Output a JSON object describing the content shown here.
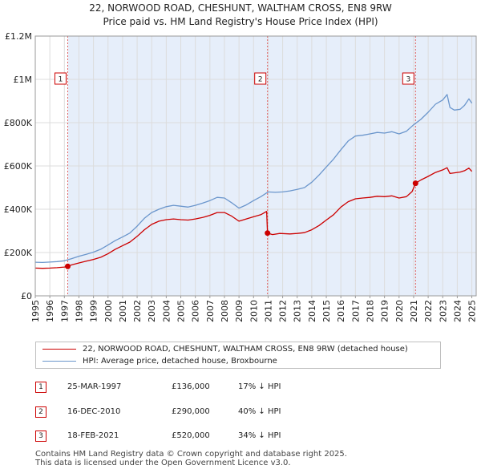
{
  "header": {
    "title_line1": "22, NORWOOD ROAD, CHESHUNT, WALTHAM CROSS, EN8 9RW",
    "title_line2": "Price paid vs. HM Land Registry's House Price Index (HPI)"
  },
  "chart_data": {
    "type": "line",
    "title": "22, NORWOOD ROAD, CHESHUNT, WALTHAM CROSS, EN8 9RW — Price paid vs. HM Land Registry's House Price Index (HPI)",
    "xlabel": "",
    "ylabel": "",
    "xlim": [
      1995,
      2025.3
    ],
    "ylim": [
      0,
      1200000
    ],
    "x_ticks": [
      "1995",
      "1996",
      "1997",
      "1998",
      "1999",
      "2000",
      "2001",
      "2002",
      "2003",
      "2004",
      "2005",
      "2006",
      "2007",
      "2008",
      "2009",
      "2010",
      "2011",
      "2012",
      "2013",
      "2014",
      "2015",
      "2016",
      "2017",
      "2018",
      "2019",
      "2020",
      "2021",
      "2022",
      "2023",
      "2024",
      "2025"
    ],
    "y_ticks": [
      {
        "value": 0,
        "label": "£0"
      },
      {
        "value": 200000,
        "label": "£200K"
      },
      {
        "value": 400000,
        "label": "£400K"
      },
      {
        "value": 600000,
        "label": "£600K"
      },
      {
        "value": 800000,
        "label": "£800K"
      },
      {
        "value": 1000000,
        "label": "£1M"
      },
      {
        "value": 1200000,
        "label": "£1.2M"
      }
    ],
    "grid": true,
    "colors": {
      "price": "#cc0000",
      "hpi": "#6b96cc",
      "shade": "#e6eefa",
      "grid": "#dcdcdc",
      "sale_line": "#e06060"
    },
    "series": [
      {
        "name": "22, NORWOOD ROAD, CHESHUNT, WALTHAM CROSS, EN8 9RW (detached house)",
        "color": "#cc0000",
        "points": [
          [
            1995.0,
            128000
          ],
          [
            1995.5,
            127000
          ],
          [
            1996.0,
            128000
          ],
          [
            1996.5,
            130000
          ],
          [
            1997.0,
            133000
          ],
          [
            1997.23,
            136000
          ],
          [
            1997.5,
            143000
          ],
          [
            1998.0,
            152000
          ],
          [
            1998.5,
            160000
          ],
          [
            1999.0,
            168000
          ],
          [
            1999.5,
            178000
          ],
          [
            2000.0,
            195000
          ],
          [
            2000.5,
            215000
          ],
          [
            2001.0,
            232000
          ],
          [
            2001.5,
            248000
          ],
          [
            2002.0,
            275000
          ],
          [
            2002.5,
            305000
          ],
          [
            2003.0,
            330000
          ],
          [
            2003.5,
            345000
          ],
          [
            2004.0,
            352000
          ],
          [
            2004.5,
            355000
          ],
          [
            2005.0,
            352000
          ],
          [
            2005.5,
            350000
          ],
          [
            2006.0,
            355000
          ],
          [
            2006.5,
            362000
          ],
          [
            2007.0,
            372000
          ],
          [
            2007.5,
            385000
          ],
          [
            2008.0,
            385000
          ],
          [
            2008.5,
            368000
          ],
          [
            2009.0,
            345000
          ],
          [
            2009.5,
            355000
          ],
          [
            2010.0,
            365000
          ],
          [
            2010.5,
            375000
          ],
          [
            2010.9,
            390000
          ],
          [
            2010.96,
            290000
          ],
          [
            2011.3,
            283000
          ],
          [
            2011.8,
            288000
          ],
          [
            2012.5,
            286000
          ],
          [
            2013.0,
            288000
          ],
          [
            2013.5,
            292000
          ],
          [
            2014.0,
            305000
          ],
          [
            2014.5,
            325000
          ],
          [
            2015.0,
            350000
          ],
          [
            2015.5,
            375000
          ],
          [
            2016.0,
            410000
          ],
          [
            2016.5,
            435000
          ],
          [
            2017.0,
            448000
          ],
          [
            2017.5,
            452000
          ],
          [
            2018.0,
            455000
          ],
          [
            2018.5,
            460000
          ],
          [
            2019.0,
            458000
          ],
          [
            2019.5,
            462000
          ],
          [
            2020.0,
            452000
          ],
          [
            2020.5,
            458000
          ],
          [
            2020.9,
            482000
          ],
          [
            2021.13,
            520000
          ],
          [
            2021.5,
            535000
          ],
          [
            2022.0,
            552000
          ],
          [
            2022.5,
            570000
          ],
          [
            2023.0,
            582000
          ],
          [
            2023.3,
            592000
          ],
          [
            2023.5,
            565000
          ],
          [
            2023.8,
            568000
          ],
          [
            2024.2,
            572000
          ],
          [
            2024.5,
            578000
          ],
          [
            2024.8,
            590000
          ],
          [
            2025.0,
            575000
          ]
        ]
      },
      {
        "name": "HPI: Average price, detached house, Broxbourne",
        "color": "#6b96cc",
        "points": [
          [
            1995.0,
            155000
          ],
          [
            1995.5,
            154000
          ],
          [
            1996.0,
            156000
          ],
          [
            1996.5,
            158000
          ],
          [
            1997.0,
            162000
          ],
          [
            1997.5,
            172000
          ],
          [
            1998.0,
            183000
          ],
          [
            1998.5,
            192000
          ],
          [
            1999.0,
            202000
          ],
          [
            1999.5,
            215000
          ],
          [
            2000.0,
            235000
          ],
          [
            2000.5,
            255000
          ],
          [
            2001.0,
            272000
          ],
          [
            2001.5,
            290000
          ],
          [
            2002.0,
            322000
          ],
          [
            2002.5,
            358000
          ],
          [
            2003.0,
            385000
          ],
          [
            2003.5,
            400000
          ],
          [
            2004.0,
            412000
          ],
          [
            2004.5,
            418000
          ],
          [
            2005.0,
            414000
          ],
          [
            2005.5,
            410000
          ],
          [
            2006.0,
            418000
          ],
          [
            2006.5,
            428000
          ],
          [
            2007.0,
            440000
          ],
          [
            2007.5,
            455000
          ],
          [
            2008.0,
            452000
          ],
          [
            2008.5,
            430000
          ],
          [
            2009.0,
            405000
          ],
          [
            2009.5,
            420000
          ],
          [
            2010.0,
            440000
          ],
          [
            2010.5,
            458000
          ],
          [
            2011.0,
            480000
          ],
          [
            2011.5,
            478000
          ],
          [
            2012.0,
            480000
          ],
          [
            2012.5,
            485000
          ],
          [
            2013.0,
            492000
          ],
          [
            2013.5,
            500000
          ],
          [
            2014.0,
            525000
          ],
          [
            2014.5,
            558000
          ],
          [
            2015.0,
            595000
          ],
          [
            2015.5,
            632000
          ],
          [
            2016.0,
            675000
          ],
          [
            2016.5,
            715000
          ],
          [
            2017.0,
            738000
          ],
          [
            2017.5,
            742000
          ],
          [
            2018.0,
            748000
          ],
          [
            2018.5,
            755000
          ],
          [
            2019.0,
            752000
          ],
          [
            2019.5,
            758000
          ],
          [
            2020.0,
            748000
          ],
          [
            2020.5,
            760000
          ],
          [
            2021.0,
            790000
          ],
          [
            2021.5,
            815000
          ],
          [
            2022.0,
            848000
          ],
          [
            2022.5,
            885000
          ],
          [
            2023.0,
            905000
          ],
          [
            2023.3,
            930000
          ],
          [
            2023.5,
            870000
          ],
          [
            2023.8,
            858000
          ],
          [
            2024.2,
            862000
          ],
          [
            2024.5,
            880000
          ],
          [
            2024.8,
            910000
          ],
          [
            2025.0,
            890000
          ]
        ]
      }
    ],
    "sales": [
      {
        "marker": "1",
        "date": "25-MAR-1997",
        "x": 1997.23,
        "price": 136000,
        "price_label": "£136,000",
        "hpi_label": "17% ↓ HPI"
      },
      {
        "marker": "2",
        "date": "16-DEC-2010",
        "x": 2010.96,
        "price": 290000,
        "price_label": "£290,000",
        "hpi_label": "40% ↓ HPI"
      },
      {
        "marker": "3",
        "date": "18-FEB-2021",
        "x": 2021.13,
        "price": 520000,
        "price_label": "£520,000",
        "hpi_label": "34% ↓ HPI"
      }
    ]
  },
  "legend": {
    "price_label": "22, NORWOOD ROAD, CHESHUNT, WALTHAM CROSS, EN8 9RW (detached house)",
    "hpi_label": "HPI: Average price, detached house, Broxbourne"
  },
  "footer": {
    "line1": "Contains HM Land Registry data © Crown copyright and database right 2025.",
    "line2": "This data is licensed under the Open Government Licence v3.0."
  }
}
